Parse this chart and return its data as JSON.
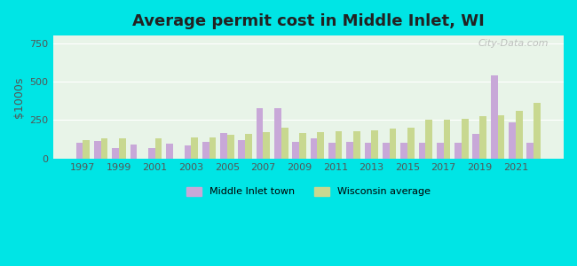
{
  "title": "Average permit cost in Middle Inlet, WI",
  "ylabel": "$1000s",
  "background_color": "#00e5e5",
  "plot_bg_top": "#e8f5e8",
  "plot_bg_bottom": "#f0faf0",
  "years": [
    1997,
    1998,
    1999,
    2000,
    2001,
    2002,
    2003,
    2004,
    2005,
    2006,
    2007,
    2008,
    2009,
    2010,
    2011,
    2012,
    2013,
    2014,
    2015,
    2016,
    2017,
    2018,
    2019,
    2020,
    2021,
    2022
  ],
  "middle_inlet": [
    100,
    115,
    70,
    90,
    70,
    95,
    85,
    110,
    165,
    120,
    330,
    330,
    110,
    130,
    105,
    110,
    105,
    100,
    100,
    100,
    105,
    100,
    160,
    540,
    235,
    100
  ],
  "wisconsin": [
    120,
    130,
    130,
    0,
    130,
    0,
    140,
    140,
    155,
    160,
    170,
    200,
    165,
    170,
    175,
    175,
    185,
    195,
    200,
    250,
    255,
    260,
    275,
    280,
    310,
    365
  ],
  "bar_color_town": "#c8a8d8",
  "bar_color_wi": "#c8d890",
  "ylim": [
    0,
    800
  ],
  "yticks": [
    0,
    250,
    500,
    750
  ],
  "xtick_years": [
    1997,
    1999,
    2001,
    2003,
    2005,
    2007,
    2009,
    2011,
    2013,
    2015,
    2017,
    2019,
    2021
  ],
  "watermark": "City-Data.com"
}
